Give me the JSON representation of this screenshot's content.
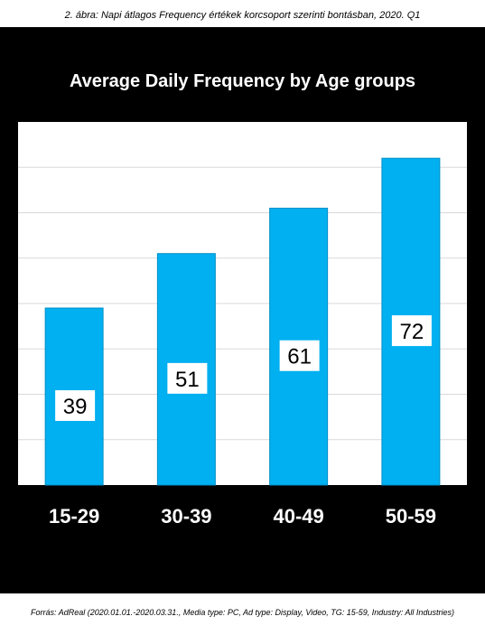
{
  "caption": "2. ábra: Napi átlagos Frequency értékek korcsoport szerinti bontásban, 2020. Q1",
  "source": "Forrás: AdReal (2020.01.01.-2020.03.31., Media type: PC, Ad type: Display, Video, TG: 15-59, Industry: All Industries)",
  "colors": {
    "bar": "#00b0f0",
    "background": "#000000",
    "plot_background": "#ffffff",
    "gridline": "#d9d9d9",
    "label_box": "#ffffff"
  },
  "chart_data": {
    "type": "bar",
    "title": "Average Daily Frequency by Age groups",
    "categories": [
      "15-29",
      "30-39",
      "40-49",
      "50-59"
    ],
    "values": [
      39,
      51,
      61,
      72
    ],
    "data_labels": [
      "39",
      "51",
      "61",
      "72"
    ],
    "xlabel": "",
    "ylabel": "",
    "ylim": [
      0,
      80
    ],
    "grid": true,
    "legend": "none"
  }
}
